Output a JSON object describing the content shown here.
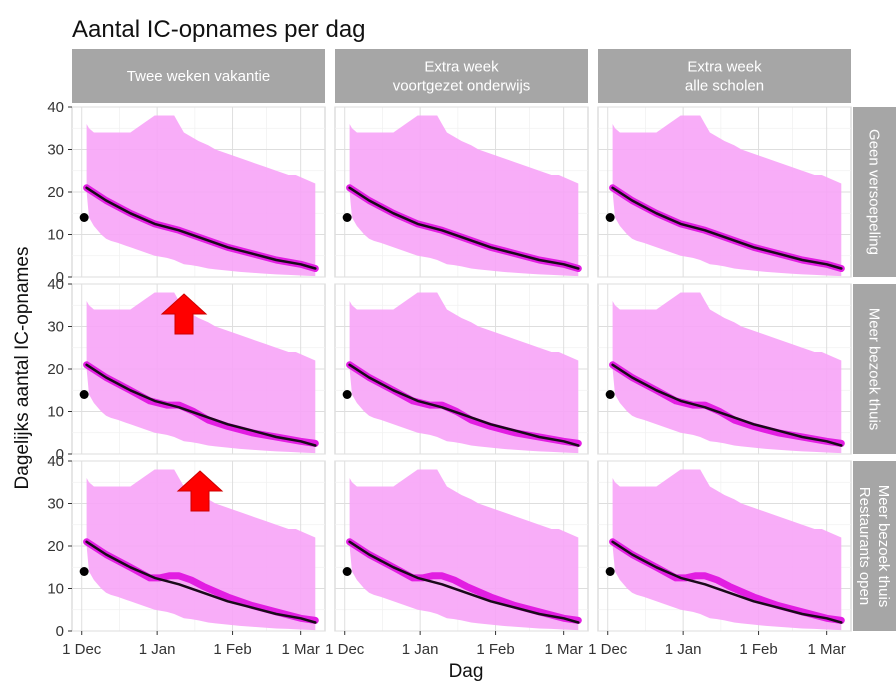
{
  "chart_data": {
    "type": "area",
    "title": "Aantal IC-opnames per dag",
    "xlabel": "Dag",
    "ylabel": "Dagelijks aantal IC-opnames",
    "ylim": [
      0,
      40
    ],
    "x_ticks": [
      "1 Dec",
      "1 Jan",
      "1 Feb",
      "1 Mar"
    ],
    "y_ticks": [
      "0",
      "10",
      "20",
      "30",
      "40"
    ],
    "grid": true,
    "column_facets": [
      "Twee weken vakantie",
      "Extra week\nvoortgezet onderwijs",
      "Extra week\nalle scholen"
    ],
    "row_facets": [
      "Geen versoepeling",
      "Meer bezoek thuis",
      "Meer bezoek thuis\nRestaurants open"
    ],
    "observed_point": {
      "day": 1,
      "value": 14
    },
    "baseline_series": {
      "days": [
        2,
        10,
        20,
        30,
        40,
        50,
        60,
        70,
        80,
        90,
        96
      ],
      "values": [
        21,
        18,
        15,
        12.5,
        11,
        9,
        7,
        5.5,
        4,
        3,
        2
      ]
    },
    "uncertainty_band": {
      "days": [
        2,
        3,
        5,
        8,
        10,
        12,
        15,
        20,
        25,
        30,
        35,
        38,
        40,
        42,
        45,
        48,
        52,
        55,
        60,
        65,
        70,
        75,
        80,
        85,
        88,
        92,
        96
      ],
      "lower": [
        20,
        14,
        12,
        10,
        9,
        8.5,
        8,
        7,
        6,
        5,
        4.5,
        4,
        3.5,
        3,
        2.8,
        2.5,
        2,
        1.8,
        1.5,
        1.2,
        1,
        0.8,
        0.6,
        0.5,
        0.4,
        0.3,
        0.2
      ],
      "upper": [
        36,
        35,
        34,
        34,
        34,
        34,
        34,
        34,
        36,
        38,
        38,
        38,
        36,
        34,
        33,
        32,
        31,
        30,
        29,
        28,
        27,
        26,
        25,
        24,
        24,
        23,
        22
      ]
    },
    "scenario_series": [
      {
        "row": 1,
        "days": [
          2,
          10,
          20,
          28,
          35,
          40,
          46,
          52,
          60,
          70,
          80,
          90,
          96
        ],
        "values": [
          21,
          18,
          15,
          12.5,
          11.5,
          11.5,
          10,
          8,
          6.5,
          5,
          4,
          3,
          2.5
        ]
      },
      {
        "row": 2,
        "days": [
          2,
          10,
          20,
          28,
          32,
          36,
          40,
          45,
          50,
          60,
          70,
          80,
          90,
          96
        ],
        "values": [
          21,
          18,
          15,
          12.5,
          12.5,
          13,
          13,
          12,
          10.5,
          8,
          6,
          4.5,
          3,
          2.5
        ]
      }
    ],
    "highlight_arrows": [
      {
        "row": 1,
        "col": 0
      },
      {
        "row": 2,
        "col": 0
      }
    ]
  }
}
